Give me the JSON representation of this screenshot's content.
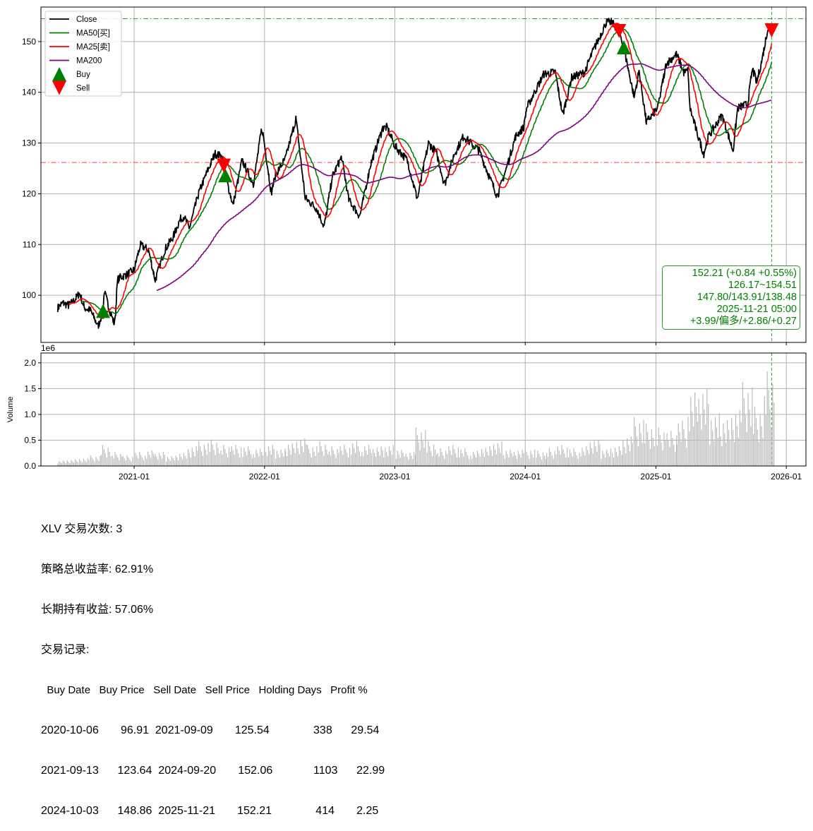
{
  "chart_data": [
    {
      "type": "line",
      "ylim": [
        90.7,
        156.8
      ],
      "xlim": [
        "2020-04-15",
        "2026-02-25"
      ],
      "yticks": [
        100,
        110,
        120,
        130,
        140,
        150
      ],
      "grid": true,
      "legend_placement": "top-left",
      "legend": [
        {
          "label": "Close",
          "color": "#000000",
          "kind": "line"
        },
        {
          "label": "MA50[买]",
          "color": "#008000",
          "kind": "line"
        },
        {
          "label": "MA25[卖]",
          "color": "#ff0000",
          "kind": "line"
        },
        {
          "label": "MA200",
          "color": "#800080",
          "kind": "line"
        },
        {
          "label": "Buy",
          "color": "#008000",
          "kind": "triangle-up"
        },
        {
          "label": "Sell",
          "color": "#ff0000",
          "kind": "triangle-down"
        }
      ],
      "moving_average_windows": {
        "MA50[买]": 50,
        "MA25[卖]": 25,
        "MA200": 200
      },
      "close": [
        [
          "2020-06-01",
          97.5
        ],
        [
          "2020-06-15",
          98.5
        ],
        [
          "2020-07-01",
          98.0
        ],
        [
          "2020-07-15",
          98.8
        ],
        [
          "2020-08-01",
          100.4
        ],
        [
          "2020-08-15",
          97.5
        ],
        [
          "2020-09-01",
          97.0
        ],
        [
          "2020-09-22",
          93.9
        ],
        [
          "2020-10-06",
          96.9
        ],
        [
          "2020-10-09",
          100.8
        ],
        [
          "2020-10-25",
          97.0
        ],
        [
          "2020-11-08",
          94.0
        ],
        [
          "2020-11-15",
          103.0
        ],
        [
          "2020-11-25",
          103.6
        ],
        [
          "2020-12-10",
          104.0
        ],
        [
          "2021-01-01",
          105.0
        ],
        [
          "2021-01-18",
          109.9
        ],
        [
          "2021-02-10",
          109.0
        ],
        [
          "2021-03-01",
          103.0
        ],
        [
          "2021-03-28",
          109.0
        ],
        [
          "2021-04-20",
          111.5
        ],
        [
          "2021-05-10",
          115.0
        ],
        [
          "2021-05-20",
          115.5
        ],
        [
          "2021-06-05",
          113.2
        ],
        [
          "2021-07-01",
          120.2
        ],
        [
          "2021-07-25",
          124.4
        ],
        [
          "2021-08-15",
          127.9
        ],
        [
          "2021-09-05",
          127.3
        ],
        [
          "2021-09-09",
          125.5
        ],
        [
          "2021-09-13",
          123.6
        ],
        [
          "2021-10-05",
          117.8
        ],
        [
          "2021-10-30",
          126.6
        ],
        [
          "2021-12-01",
          122.0
        ],
        [
          "2021-12-25",
          133.2
        ],
        [
          "2022-01-20",
          120.2
        ],
        [
          "2022-02-01",
          123.8
        ],
        [
          "2022-03-01",
          127.0
        ],
        [
          "2022-03-30",
          134.8
        ],
        [
          "2022-04-25",
          119.2
        ],
        [
          "2022-05-28",
          117.0
        ],
        [
          "2022-06-17",
          113.4
        ],
        [
          "2022-07-10",
          123.4
        ],
        [
          "2022-08-05",
          127.3
        ],
        [
          "2022-08-25",
          118.8
        ],
        [
          "2022-09-25",
          115.5
        ],
        [
          "2022-10-25",
          125.8
        ],
        [
          "2022-11-28",
          132.9
        ],
        [
          "2022-12-10",
          133.1
        ],
        [
          "2023-01-01",
          129.4
        ],
        [
          "2023-02-05",
          126.6
        ],
        [
          "2023-03-05",
          118.9
        ],
        [
          "2023-04-05",
          130.0
        ],
        [
          "2023-04-28",
          128.0
        ],
        [
          "2023-05-20",
          121.7
        ],
        [
          "2023-06-15",
          127.6
        ],
        [
          "2023-07-12",
          131.3
        ],
        [
          "2023-08-25",
          128.5
        ],
        [
          "2023-09-20",
          123.8
        ],
        [
          "2023-10-15",
          119.5
        ],
        [
          "2023-11-10",
          125.2
        ],
        [
          "2023-12-05",
          131.3
        ],
        [
          "2023-12-28",
          133.1
        ],
        [
          "2024-01-05",
          136.9
        ],
        [
          "2024-02-22",
          143.6
        ],
        [
          "2024-03-25",
          144.0
        ],
        [
          "2024-04-15",
          135.5
        ],
        [
          "2024-05-10",
          142.9
        ],
        [
          "2024-06-15",
          143.9
        ],
        [
          "2024-07-05",
          147.5
        ],
        [
          "2024-08-15",
          153.8
        ],
        [
          "2024-08-30",
          153.8
        ],
        [
          "2024-09-20",
          152.1
        ],
        [
          "2024-10-03",
          148.9
        ],
        [
          "2024-10-15",
          144.7
        ],
        [
          "2024-11-01",
          139.1
        ],
        [
          "2024-11-15",
          144.3
        ],
        [
          "2024-12-05",
          134.1
        ],
        [
          "2025-01-06",
          136.9
        ],
        [
          "2025-01-30",
          145.7
        ],
        [
          "2025-02-28",
          147.5
        ],
        [
          "2025-03-20",
          143.9
        ],
        [
          "2025-04-01",
          144.3
        ],
        [
          "2025-04-05",
          137.3
        ],
        [
          "2025-04-25",
          132.2
        ],
        [
          "2025-05-15",
          127.9
        ],
        [
          "2025-05-28",
          131.3
        ],
        [
          "2025-07-05",
          135.5
        ],
        [
          "2025-08-05",
          128.5
        ],
        [
          "2025-08-18",
          136.9
        ],
        [
          "2025-09-15",
          137.7
        ],
        [
          "2025-09-28",
          144.7
        ],
        [
          "2025-10-10",
          141.9
        ],
        [
          "2025-10-25",
          146.4
        ],
        [
          "2025-11-10",
          152.6
        ],
        [
          "2025-11-21",
          152.21
        ]
      ],
      "buy_points": [
        [
          "2020-10-06",
          96.91
        ],
        [
          "2021-09-13",
          123.64
        ],
        [
          "2024-10-03",
          148.86
        ]
      ],
      "sell_points": [
        [
          "2021-09-09",
          125.54
        ],
        [
          "2024-09-20",
          152.06
        ],
        [
          "2025-11-21",
          152.21
        ]
      ],
      "hlines": [
        {
          "value": 154.51,
          "color": "#2ca02c",
          "style": "dashdot"
        },
        {
          "value": 126.17,
          "color": "#ff4444",
          "style": "dashdot"
        }
      ],
      "vline": {
        "date": "2025-11-21",
        "color": "#2ca02c",
        "style": "dashed"
      },
      "info_box": {
        "color": "#008000",
        "lines": [
          "152.21 (+0.84 +0.55%)",
          "126.17~154.51",
          "147.80/143.91/138.48",
          "2025-11-21 05:00",
          "+3.99/偏多/+2.86/+0.27"
        ]
      }
    },
    {
      "type": "bar",
      "ylabel": "Volume",
      "offset_text": "1e6",
      "ylim": [
        0,
        2.19
      ],
      "yticks": [
        "0.0",
        "0.5",
        "1.0",
        "1.5",
        "2.0"
      ],
      "xticks": [
        "2021-01",
        "2022-01",
        "2023-01",
        "2024-01",
        "2025-01",
        "2026-01"
      ],
      "grid": true,
      "color": "#bbbbbb",
      "months_start": "2020-06",
      "values": [
        0.08,
        0.1,
        0.12,
        0.15,
        0.3,
        0.2,
        0.15,
        0.2,
        0.22,
        0.2,
        0.15,
        0.2,
        0.3,
        0.35,
        0.38,
        0.3,
        0.3,
        0.28,
        0.25,
        0.3,
        0.25,
        0.35,
        0.42,
        0.3,
        0.35,
        0.28,
        0.3,
        0.35,
        0.3,
        0.28,
        0.3,
        0.25,
        0.22,
        0.55,
        0.35,
        0.25,
        0.3,
        0.25,
        0.22,
        0.28,
        0.35,
        0.25,
        0.25,
        0.25,
        0.22,
        0.25,
        0.3,
        0.25,
        0.28,
        0.38,
        0.25,
        0.3,
        0.45,
        0.7,
        0.6,
        0.55,
        0.5,
        0.65,
        1.05,
        1.1,
        0.75,
        0.7,
        0.85,
        1.2,
        0.85,
        1.35
      ]
    }
  ],
  "summary": {
    "trades": "XLV 交易次数: 3",
    "strategy_return": "策略总收益率: 62.91%",
    "hold_return": "长期持有收益: 57.06%",
    "records_title": "交易记录:",
    "table_header": "  Buy Date   Buy Price   Sell Date   Sell Price   Holding Days   Profit %",
    "rows": [
      "2020-10-06       96.91  2021-09-09       125.54              338      29.54",
      "2021-09-13      123.64  2024-09-20       152.06             1103      22.99",
      "2024-10-03      148.86  2025-11-21       152.21              414       2.25"
    ]
  }
}
